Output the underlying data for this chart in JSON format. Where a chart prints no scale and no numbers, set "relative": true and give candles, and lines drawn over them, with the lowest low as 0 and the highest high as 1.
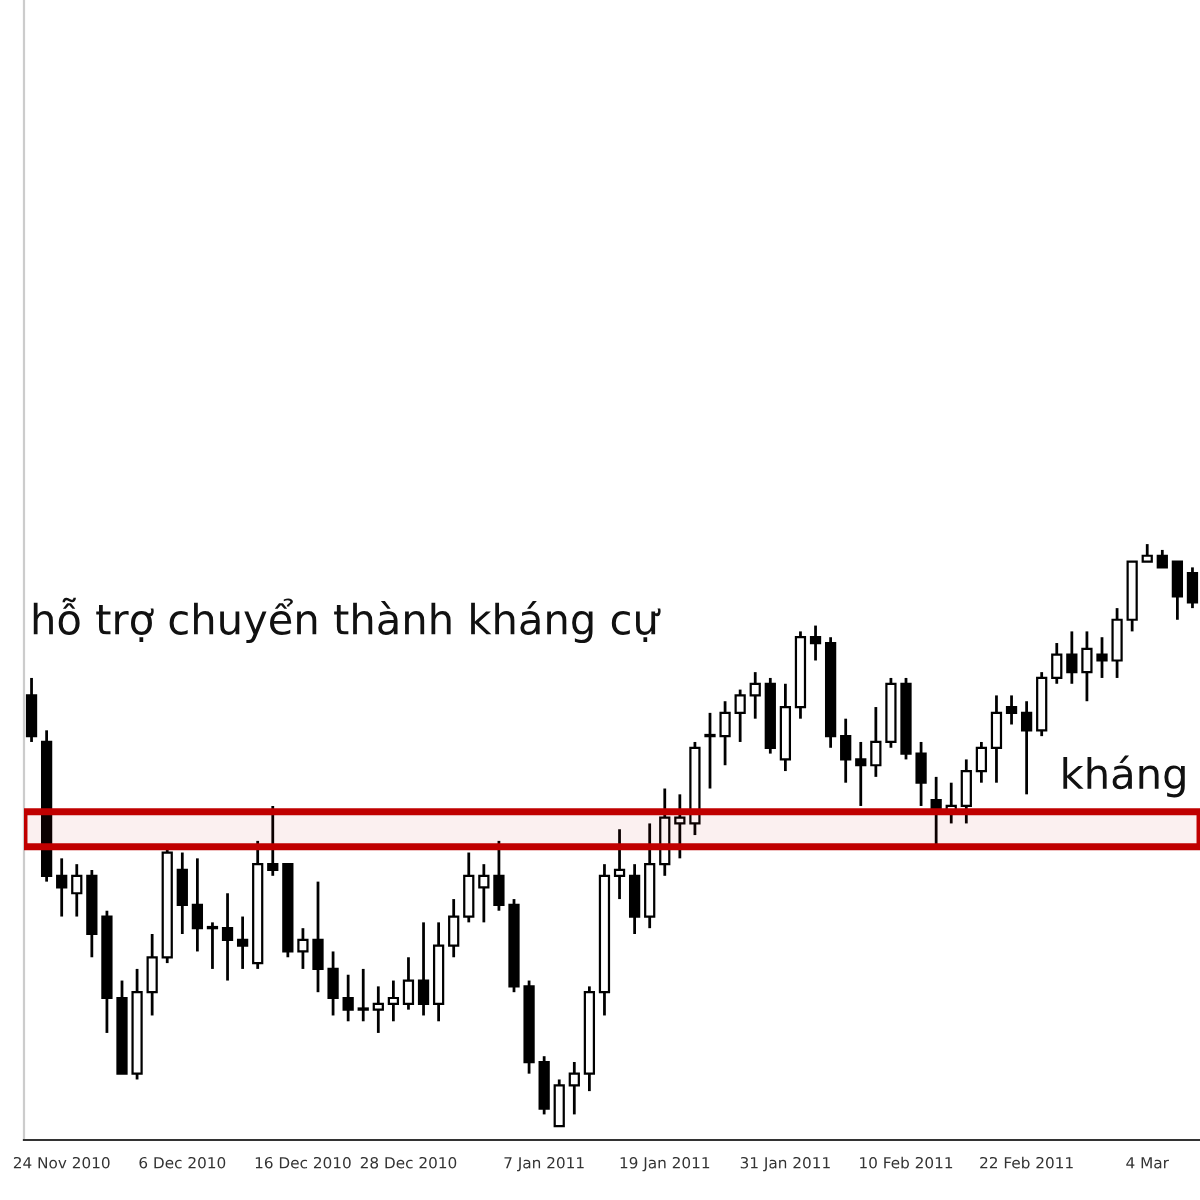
{
  "chart_data": {
    "type": "candlestick",
    "relative": true,
    "categories": [
      null,
      null,
      "24 Nov 2010",
      null,
      null,
      null,
      null,
      null,
      null,
      null,
      "6 Dec 2010",
      null,
      null,
      null,
      null,
      null,
      null,
      null,
      "16 Dec 2010",
      null,
      null,
      null,
      null,
      null,
      null,
      "28 Dec 2010",
      null,
      null,
      null,
      null,
      null,
      null,
      null,
      null,
      "7 Jan 2011",
      null,
      null,
      null,
      null,
      null,
      null,
      null,
      "19 Jan 2011",
      null,
      null,
      null,
      null,
      null,
      null,
      null,
      "31 Jan 2011",
      null,
      null,
      null,
      null,
      null,
      null,
      null,
      "10 Feb 2011",
      null,
      null,
      null,
      null,
      null,
      null,
      null,
      "22 Feb 2011",
      null,
      null,
      null,
      null,
      null,
      null,
      null,
      "4 Mar",
      null,
      null,
      null
    ],
    "ohlc": [
      [
        0.74,
        0.77,
        0.66,
        0.67
      ],
      [
        0.66,
        0.68,
        0.42,
        0.43
      ],
      [
        0.43,
        0.46,
        0.36,
        0.41
      ],
      [
        0.4,
        0.45,
        0.36,
        0.43
      ],
      [
        0.43,
        0.44,
        0.29,
        0.33
      ],
      [
        0.36,
        0.37,
        0.16,
        0.22
      ],
      [
        0.22,
        0.25,
        0.09,
        0.09
      ],
      [
        0.09,
        0.27,
        0.08,
        0.23
      ],
      [
        0.23,
        0.33,
        0.19,
        0.29
      ],
      [
        0.29,
        0.48,
        0.28,
        0.47
      ],
      [
        0.44,
        0.47,
        0.33,
        0.38
      ],
      [
        0.38,
        0.46,
        0.3,
        0.34
      ],
      [
        0.34,
        0.35,
        0.27,
        0.34
      ],
      [
        0.34,
        0.4,
        0.25,
        0.32
      ],
      [
        0.32,
        0.36,
        0.27,
        0.31
      ],
      [
        0.28,
        0.49,
        0.27,
        0.45
      ],
      [
        0.45,
        0.55,
        0.43,
        0.44
      ],
      [
        0.45,
        0.45,
        0.29,
        0.3
      ],
      [
        0.3,
        0.34,
        0.27,
        0.32
      ],
      [
        0.32,
        0.42,
        0.23,
        0.27
      ],
      [
        0.27,
        0.3,
        0.19,
        0.22
      ],
      [
        0.22,
        0.26,
        0.18,
        0.2
      ],
      [
        0.2,
        0.27,
        0.18,
        0.2
      ],
      [
        0.2,
        0.24,
        0.16,
        0.21
      ],
      [
        0.21,
        0.25,
        0.18,
        0.22
      ],
      [
        0.21,
        0.29,
        0.2,
        0.25
      ],
      [
        0.25,
        0.35,
        0.19,
        0.21
      ],
      [
        0.21,
        0.35,
        0.18,
        0.31
      ],
      [
        0.31,
        0.39,
        0.29,
        0.36
      ],
      [
        0.36,
        0.47,
        0.35,
        0.43
      ],
      [
        0.41,
        0.45,
        0.35,
        0.43
      ],
      [
        0.43,
        0.49,
        0.37,
        0.38
      ],
      [
        0.38,
        0.39,
        0.23,
        0.24
      ],
      [
        0.24,
        0.25,
        0.09,
        0.11
      ],
      [
        0.11,
        0.12,
        0.02,
        0.03
      ],
      [
        0,
        0.08,
        0,
        0.07
      ],
      [
        0.07,
        0.11,
        0.02,
        0.09
      ],
      [
        0.09,
        0.24,
        0.06,
        0.23
      ],
      [
        0.23,
        0.45,
        0.19,
        0.43
      ],
      [
        0.43,
        0.51,
        0.39,
        0.44
      ],
      [
        0.43,
        0.45,
        0.33,
        0.36
      ],
      [
        0.36,
        0.52,
        0.34,
        0.45
      ],
      [
        0.45,
        0.58,
        0.43,
        0.53
      ],
      [
        0.52,
        0.57,
        0.46,
        0.53
      ],
      [
        0.52,
        0.66,
        0.5,
        0.65
      ],
      [
        0.67,
        0.71,
        0.58,
        0.67
      ],
      [
        0.67,
        0.73,
        0.62,
        0.71
      ],
      [
        0.71,
        0.75,
        0.66,
        0.74
      ],
      [
        0.74,
        0.78,
        0.7,
        0.76
      ],
      [
        0.76,
        0.77,
        0.64,
        0.65
      ],
      [
        0.63,
        0.76,
        0.61,
        0.72
      ],
      [
        0.72,
        0.85,
        0.7,
        0.84
      ],
      [
        0.84,
        0.86,
        0.8,
        0.83
      ],
      [
        0.83,
        0.84,
        0.65,
        0.67
      ],
      [
        0.67,
        0.7,
        0.59,
        0.63
      ],
      [
        0.63,
        0.66,
        0.55,
        0.62
      ],
      [
        0.62,
        0.72,
        0.6,
        0.66
      ],
      [
        0.66,
        0.77,
        0.65,
        0.76
      ],
      [
        0.76,
        0.77,
        0.63,
        0.64
      ],
      [
        0.64,
        0.66,
        0.55,
        0.59
      ],
      [
        0.56,
        0.6,
        0.48,
        0.54
      ],
      [
        0.54,
        0.59,
        0.52,
        0.55
      ],
      [
        0.55,
        0.63,
        0.52,
        0.61
      ],
      [
        0.61,
        0.66,
        0.59,
        0.65
      ],
      [
        0.65,
        0.74,
        0.59,
        0.71
      ],
      [
        0.72,
        0.74,
        0.69,
        0.71
      ],
      [
        0.71,
        0.73,
        0.57,
        0.68
      ],
      [
        0.68,
        0.78,
        0.67,
        0.77
      ],
      [
        0.77,
        0.83,
        0.76,
        0.81
      ],
      [
        0.81,
        0.85,
        0.76,
        0.78
      ],
      [
        0.78,
        0.85,
        0.73,
        0.82
      ],
      [
        0.81,
        0.84,
        0.77,
        0.8
      ],
      [
        0.8,
        0.89,
        0.77,
        0.87
      ],
      [
        0.87,
        0.97,
        0.85,
        0.97
      ],
      [
        0.97,
        1,
        0.97,
        0.98
      ],
      [
        0.98,
        0.99,
        0.96,
        0.96
      ],
      [
        0.97,
        0.97,
        0.87,
        0.91
      ],
      [
        0.95,
        0.96,
        0.89,
        0.9
      ]
    ],
    "bands": [
      {
        "axis": "y",
        "from": 0.48,
        "to": 0.54,
        "color": "#c00000"
      }
    ],
    "annotations": [
      "hỗ trợ chuyển thành kháng cự",
      "kháng"
    ]
  }
}
